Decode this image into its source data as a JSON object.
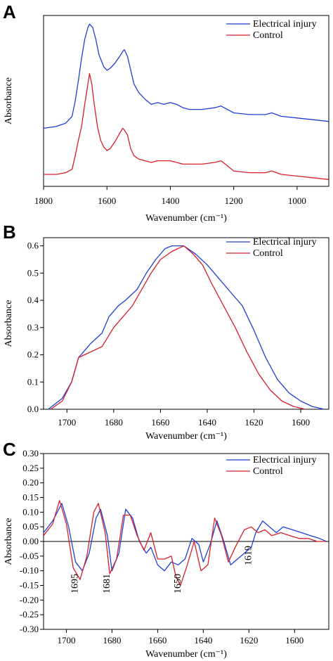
{
  "chart_data": [
    {
      "panel": "A",
      "type": "line",
      "xlabel": "Wavenumber (cm⁻¹)",
      "ylabel": "Absorbance",
      "xlim": [
        1800,
        900
      ],
      "x_reversed": true,
      "xticks": [
        1800,
        1600,
        1400,
        1200,
        1000
      ],
      "yticks": [],
      "ylim": [
        0,
        1
      ],
      "legend_position": "top-right",
      "series": [
        {
          "name": "Electrical injury",
          "color": "#1f3fd6",
          "points": [
            [
              1800,
              0.34
            ],
            [
              1760,
              0.35
            ],
            [
              1730,
              0.37
            ],
            [
              1710,
              0.41
            ],
            [
              1700,
              0.5
            ],
            [
              1690,
              0.62
            ],
            [
              1680,
              0.75
            ],
            [
              1670,
              0.86
            ],
            [
              1660,
              0.93
            ],
            [
              1655,
              0.95
            ],
            [
              1645,
              0.93
            ],
            [
              1635,
              0.86
            ],
            [
              1625,
              0.77
            ],
            [
              1610,
              0.7
            ],
            [
              1600,
              0.68
            ],
            [
              1590,
              0.69
            ],
            [
              1575,
              0.72
            ],
            [
              1560,
              0.76
            ],
            [
              1550,
              0.79
            ],
            [
              1545,
              0.8
            ],
            [
              1535,
              0.76
            ],
            [
              1525,
              0.68
            ],
            [
              1515,
              0.6
            ],
            [
              1500,
              0.55
            ],
            [
              1480,
              0.51
            ],
            [
              1460,
              0.48
            ],
            [
              1440,
              0.49
            ],
            [
              1420,
              0.48
            ],
            [
              1400,
              0.49
            ],
            [
              1380,
              0.48
            ],
            [
              1360,
              0.46
            ],
            [
              1340,
              0.45
            ],
            [
              1300,
              0.45
            ],
            [
              1260,
              0.46
            ],
            [
              1240,
              0.47
            ],
            [
              1220,
              0.45
            ],
            [
              1200,
              0.43
            ],
            [
              1150,
              0.42
            ],
            [
              1100,
              0.42
            ],
            [
              1080,
              0.43
            ],
            [
              1050,
              0.41
            ],
            [
              1000,
              0.4
            ],
            [
              950,
              0.39
            ],
            [
              900,
              0.38
            ]
          ]
        },
        {
          "name": "Control",
          "color": "#d61f2a",
          "points": [
            [
              1800,
              0.07
            ],
            [
              1760,
              0.07
            ],
            [
              1730,
              0.08
            ],
            [
              1710,
              0.1
            ],
            [
              1700,
              0.18
            ],
            [
              1690,
              0.27
            ],
            [
              1680,
              0.35
            ],
            [
              1670,
              0.48
            ],
            [
              1660,
              0.6
            ],
            [
              1655,
              0.66
            ],
            [
              1648,
              0.6
            ],
            [
              1640,
              0.48
            ],
            [
              1630,
              0.35
            ],
            [
              1620,
              0.27
            ],
            [
              1610,
              0.23
            ],
            [
              1600,
              0.21
            ],
            [
              1590,
              0.22
            ],
            [
              1575,
              0.26
            ],
            [
              1560,
              0.31
            ],
            [
              1550,
              0.34
            ],
            [
              1545,
              0.33
            ],
            [
              1535,
              0.3
            ],
            [
              1525,
              0.22
            ],
            [
              1515,
              0.18
            ],
            [
              1500,
              0.16
            ],
            [
              1480,
              0.15
            ],
            [
              1460,
              0.14
            ],
            [
              1440,
              0.15
            ],
            [
              1420,
              0.15
            ],
            [
              1400,
              0.15
            ],
            [
              1380,
              0.14
            ],
            [
              1360,
              0.13
            ],
            [
              1300,
              0.13
            ],
            [
              1260,
              0.14
            ],
            [
              1240,
              0.15
            ],
            [
              1220,
              0.12
            ],
            [
              1200,
              0.09
            ],
            [
              1150,
              0.08
            ],
            [
              1100,
              0.08
            ],
            [
              1080,
              0.09
            ],
            [
              1050,
              0.07
            ],
            [
              1000,
              0.06
            ],
            [
              950,
              0.05
            ],
            [
              900,
              0.04
            ]
          ]
        }
      ]
    },
    {
      "panel": "B",
      "type": "line",
      "xlabel": "Wavenumber (cm⁻¹)",
      "ylabel": "Absorbance",
      "xlim": [
        1710,
        1588
      ],
      "x_reversed": true,
      "ylim": [
        0.0,
        0.63
      ],
      "xticks": [
        1700,
        1680,
        1660,
        1640,
        1620,
        1600
      ],
      "yticks": [
        0.0,
        0.1,
        0.2,
        0.3,
        0.4,
        0.5,
        0.6
      ],
      "ytick_labels": [
        "0.0",
        "0.1",
        "0.2",
        "0.3",
        "0.4",
        "0.5",
        "0.6"
      ],
      "legend_position": "top-right",
      "series": [
        {
          "name": "Electrical injury",
          "color": "#1f3fd6",
          "points": [
            [
              1708,
              0.0
            ],
            [
              1702,
              0.04
            ],
            [
              1698,
              0.1
            ],
            [
              1695,
              0.19
            ],
            [
              1690,
              0.24
            ],
            [
              1685,
              0.28
            ],
            [
              1682,
              0.34
            ],
            [
              1678,
              0.38
            ],
            [
              1675,
              0.4
            ],
            [
              1670,
              0.44
            ],
            [
              1666,
              0.5
            ],
            [
              1662,
              0.55
            ],
            [
              1658,
              0.59
            ],
            [
              1655,
              0.6
            ],
            [
              1650,
              0.6
            ],
            [
              1645,
              0.57
            ],
            [
              1640,
              0.53
            ],
            [
              1635,
              0.48
            ],
            [
              1630,
              0.43
            ],
            [
              1625,
              0.38
            ],
            [
              1620,
              0.29
            ],
            [
              1615,
              0.19
            ],
            [
              1610,
              0.11
            ],
            [
              1605,
              0.06
            ],
            [
              1600,
              0.03
            ],
            [
              1595,
              0.01
            ],
            [
              1590,
              0.0
            ]
          ]
        },
        {
          "name": "Control",
          "color": "#d61f2a",
          "points": [
            [
              1707,
              0.0
            ],
            [
              1702,
              0.03
            ],
            [
              1698,
              0.1
            ],
            [
              1695,
              0.19
            ],
            [
              1690,
              0.21
            ],
            [
              1685,
              0.23
            ],
            [
              1680,
              0.3
            ],
            [
              1676,
              0.34
            ],
            [
              1672,
              0.38
            ],
            [
              1668,
              0.44
            ],
            [
              1664,
              0.5
            ],
            [
              1660,
              0.55
            ],
            [
              1655,
              0.58
            ],
            [
              1650,
              0.6
            ],
            [
              1646,
              0.57
            ],
            [
              1642,
              0.53
            ],
            [
              1638,
              0.46
            ],
            [
              1633,
              0.38
            ],
            [
              1628,
              0.3
            ],
            [
              1623,
              0.21
            ],
            [
              1618,
              0.13
            ],
            [
              1613,
              0.07
            ],
            [
              1608,
              0.03
            ],
            [
              1603,
              0.01
            ],
            [
              1598,
              0.0
            ]
          ]
        }
      ]
    },
    {
      "panel": "C",
      "type": "line",
      "xlabel": "Wavenumber (cm⁻¹)",
      "ylabel": "Absorbance",
      "xlim": [
        1710,
        1585
      ],
      "x_reversed": true,
      "ylim": [
        -0.3,
        0.3
      ],
      "xticks": [
        1700,
        1680,
        1660,
        1640,
        1620,
        1600
      ],
      "yticks": [
        0.3,
        0.25,
        0.2,
        0.15,
        0.1,
        0.05,
        0.0,
        -0.05,
        -0.1,
        -0.15,
        -0.2,
        -0.25,
        -0.3
      ],
      "ytick_labels": [
        "0.30",
        "0.25",
        "0.20",
        "0.15",
        "0.10",
        "0.05",
        "0.00",
        "-0.05",
        "-0.10",
        "-0.15",
        "-0.20",
        "-0.25",
        "-0.30"
      ],
      "zero_line": true,
      "legend_position": "top-right",
      "annotations": [
        {
          "text": "1695",
          "x": 1695
        },
        {
          "text": "1681",
          "x": 1681
        },
        {
          "text": "1650",
          "x": 1650
        },
        {
          "text": "1619",
          "x": 1619
        }
      ],
      "series": [
        {
          "name": "Electrical injury",
          "color": "#1f3fd6",
          "points": [
            [
              1710,
              0.03
            ],
            [
              1706,
              0.07
            ],
            [
              1702,
              0.13
            ],
            [
              1699,
              0.05
            ],
            [
              1696,
              -0.07
            ],
            [
              1693,
              -0.1
            ],
            [
              1690,
              -0.04
            ],
            [
              1687,
              0.08
            ],
            [
              1685,
              0.11
            ],
            [
              1682,
              0.02
            ],
            [
              1680,
              -0.1
            ],
            [
              1677,
              -0.04
            ],
            [
              1674,
              0.11
            ],
            [
              1671,
              0.08
            ],
            [
              1668,
              0.0
            ],
            [
              1665,
              -0.04
            ],
            [
              1663,
              -0.02
            ],
            [
              1660,
              -0.08
            ],
            [
              1657,
              -0.1
            ],
            [
              1654,
              -0.07
            ],
            [
              1651,
              -0.08
            ],
            [
              1648,
              -0.06
            ],
            [
              1645,
              0.01
            ],
            [
              1642,
              -0.01
            ],
            [
              1640,
              -0.07
            ],
            [
              1637,
              -0.01
            ],
            [
              1634,
              0.07
            ],
            [
              1631,
              0.0
            ],
            [
              1628,
              -0.08
            ],
            [
              1625,
              -0.06
            ],
            [
              1622,
              -0.04
            ],
            [
              1619,
              -0.02
            ],
            [
              1617,
              0.03
            ],
            [
              1614,
              0.07
            ],
            [
              1611,
              0.05
            ],
            [
              1608,
              0.03
            ],
            [
              1605,
              0.05
            ],
            [
              1601,
              0.04
            ],
            [
              1597,
              0.03
            ],
            [
              1593,
              0.02
            ],
            [
              1589,
              0.01
            ],
            [
              1586,
              0.0
            ]
          ]
        },
        {
          "name": "Control",
          "color": "#d61f2a",
          "points": [
            [
              1710,
              0.02
            ],
            [
              1706,
              0.06
            ],
            [
              1703,
              0.14
            ],
            [
              1700,
              0.06
            ],
            [
              1697,
              -0.09
            ],
            [
              1694,
              -0.13
            ],
            [
              1691,
              -0.05
            ],
            [
              1688,
              0.1
            ],
            [
              1686,
              0.13
            ],
            [
              1683,
              0.03
            ],
            [
              1681,
              -0.11
            ],
            [
              1678,
              -0.06
            ],
            [
              1675,
              0.09
            ],
            [
              1672,
              0.09
            ],
            [
              1669,
              0.02
            ],
            [
              1666,
              -0.03
            ],
            [
              1663,
              0.03
            ],
            [
              1660,
              -0.06
            ],
            [
              1657,
              -0.06
            ],
            [
              1654,
              -0.05
            ],
            [
              1652,
              -0.12
            ],
            [
              1650,
              -0.15
            ],
            [
              1647,
              -0.08
            ],
            [
              1644,
              0.0
            ],
            [
              1641,
              -0.1
            ],
            [
              1638,
              -0.08
            ],
            [
              1635,
              0.08
            ],
            [
              1632,
              0.02
            ],
            [
              1629,
              -0.07
            ],
            [
              1626,
              -0.02
            ],
            [
              1622,
              0.04
            ],
            [
              1619,
              0.05
            ],
            [
              1616,
              0.03
            ],
            [
              1613,
              0.04
            ],
            [
              1610,
              0.02
            ],
            [
              1606,
              0.03
            ],
            [
              1602,
              0.02
            ],
            [
              1598,
              0.01
            ],
            [
              1594,
              0.01
            ],
            [
              1590,
              0.0
            ],
            [
              1586,
              0.0
            ]
          ]
        }
      ]
    }
  ],
  "panels": [
    {
      "letter": "A"
    },
    {
      "letter": "B"
    },
    {
      "letter": "C"
    }
  ]
}
